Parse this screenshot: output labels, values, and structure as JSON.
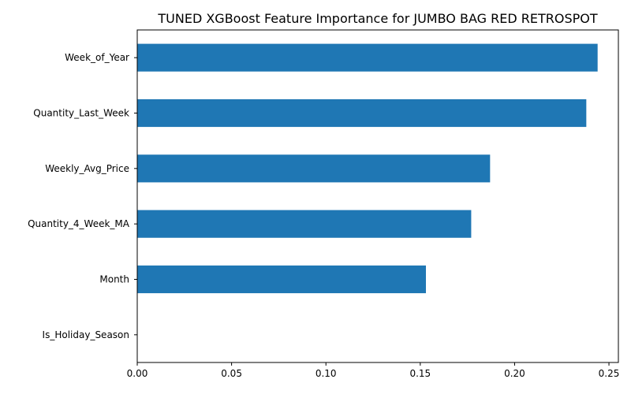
{
  "chart_data": {
    "type": "bar",
    "orientation": "horizontal",
    "title": "TUNED XGBoost Feature Importance for JUMBO BAG RED RETROSPOT",
    "xlabel": "",
    "ylabel": "",
    "categories": [
      "Week_of_Year",
      "Quantity_Last_Week",
      "Weekly_Avg_Price",
      "Quantity_4_Week_MA",
      "Month",
      "Is_Holiday_Season"
    ],
    "values": [
      0.244,
      0.238,
      0.187,
      0.177,
      0.153,
      0.0
    ],
    "xlim": [
      0,
      0.255
    ],
    "xticks": [
      0.0,
      0.05,
      0.1,
      0.15,
      0.2,
      0.25
    ],
    "xtick_labels": [
      "0.00",
      "0.05",
      "0.10",
      "0.15",
      "0.20",
      "0.25"
    ],
    "bar_color": "#1f77b4",
    "grid": false,
    "legend": "none"
  }
}
